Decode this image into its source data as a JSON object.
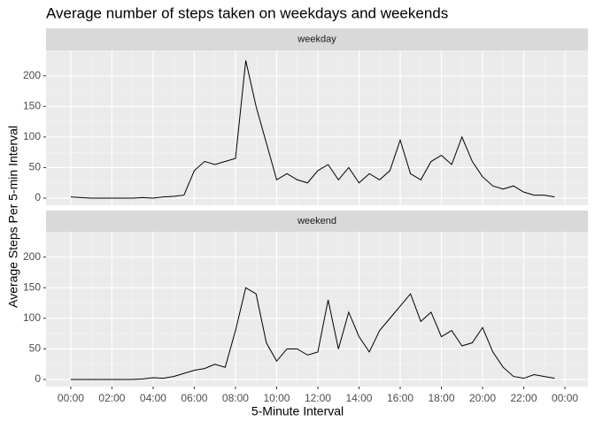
{
  "chart_data": {
    "type": "line",
    "title": "Average number of steps taken on weekdays and weekends",
    "x_label": "5-Minute Interval",
    "y_label": "Average Steps Per 5-min Interval",
    "color": "#000000",
    "grid": true,
    "x": [
      0,
      30,
      60,
      90,
      120,
      150,
      180,
      210,
      240,
      270,
      300,
      330,
      360,
      390,
      420,
      450,
      480,
      510,
      540,
      570,
      600,
      630,
      660,
      690,
      720,
      750,
      780,
      810,
      840,
      870,
      900,
      930,
      960,
      990,
      1020,
      1050,
      1080,
      1110,
      1140,
      1170,
      1200,
      1230,
      1260,
      1290,
      1320,
      1350,
      1380,
      1410
    ],
    "xlim": [
      -72,
      1507
    ],
    "xticks": [
      {
        "value": 0,
        "label": "00:00"
      },
      {
        "value": 120,
        "label": "02:00"
      },
      {
        "value": 240,
        "label": "04:00"
      },
      {
        "value": 360,
        "label": "06:00"
      },
      {
        "value": 480,
        "label": "08:00"
      },
      {
        "value": 600,
        "label": "10:00"
      },
      {
        "value": 720,
        "label": "12:00"
      },
      {
        "value": 840,
        "label": "14:00"
      },
      {
        "value": 960,
        "label": "16:00"
      },
      {
        "value": 1080,
        "label": "18:00"
      },
      {
        "value": 1200,
        "label": "20:00"
      },
      {
        "value": 1320,
        "label": "22:00"
      },
      {
        "value": 1440,
        "label": "00:00"
      }
    ],
    "ylim": [
      -11.5,
      241.5
    ],
    "yticks": [
      0,
      50,
      100,
      150,
      200
    ],
    "facets": [
      {
        "strip": "weekday",
        "values": [
          2,
          1,
          0,
          0,
          0,
          0,
          0,
          1,
          0,
          2,
          3,
          5,
          45,
          60,
          55,
          60,
          65,
          225,
          150,
          90,
          30,
          40,
          30,
          25,
          45,
          55,
          30,
          50,
          25,
          40,
          30,
          45,
          95,
          40,
          30,
          60,
          70,
          55,
          100,
          60,
          35,
          20,
          15,
          20,
          10,
          5,
          5,
          2
        ]
      },
      {
        "strip": "weekend",
        "values": [
          0,
          0,
          0,
          0,
          0,
          0,
          0,
          1,
          3,
          2,
          5,
          10,
          15,
          18,
          25,
          20,
          80,
          150,
          140,
          60,
          30,
          50,
          50,
          40,
          45,
          130,
          50,
          110,
          70,
          45,
          80,
          100,
          120,
          140,
          95,
          110,
          70,
          80,
          55,
          60,
          85,
          45,
          20,
          5,
          2,
          8,
          5,
          2
        ]
      }
    ]
  }
}
